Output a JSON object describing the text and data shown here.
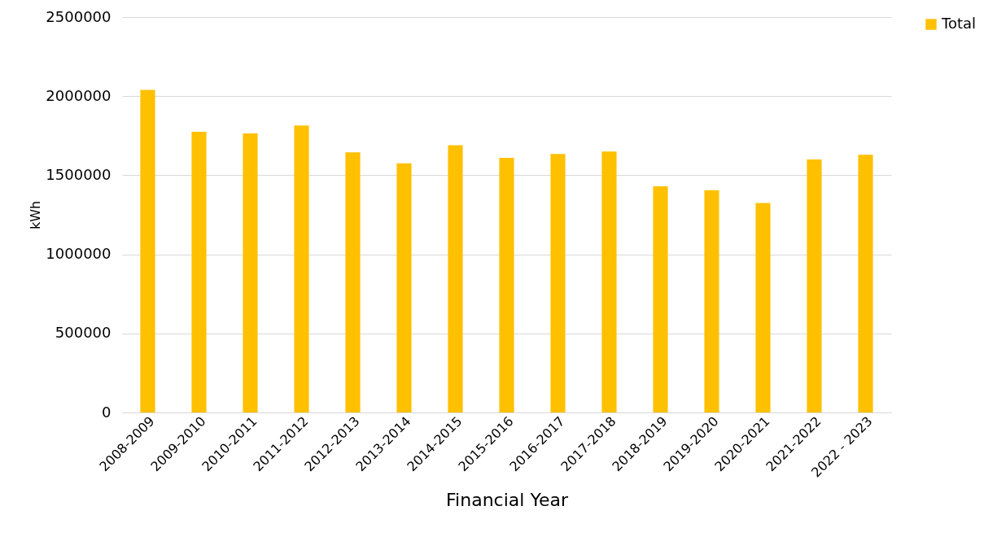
{
  "chart_data": {
    "type": "bar",
    "xlabel": "Financial Year",
    "ylabel": "kWh",
    "categories": [
      "2008-2009",
      "2009-2010",
      "2010-2011",
      "2011-2012",
      "2012-2013",
      "2013-2014",
      "2014-2015",
      "2015-2016",
      "2016-2017",
      "2017-2018",
      "2018-2019",
      "2019-2020",
      "2020-2021",
      "2021-2022",
      "2022 - 2023"
    ],
    "series": [
      {
        "name": "Total",
        "color": "#ffc000",
        "values": [
          2040000,
          1775000,
          1765000,
          1815000,
          1645000,
          1575000,
          1690000,
          1610000,
          1635000,
          1650000,
          1430000,
          1405000,
          1325000,
          1600000,
          1630000
        ]
      }
    ],
    "ylim": [
      0,
      2500000
    ],
    "yticks": [
      0,
      500000,
      1000000,
      1500000,
      2000000,
      2500000
    ],
    "grid": "y",
    "legend": "right"
  }
}
